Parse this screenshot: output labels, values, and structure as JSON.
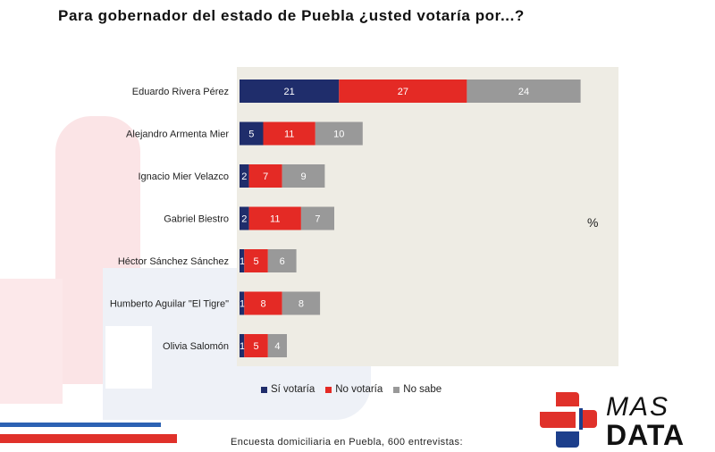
{
  "title": "Para gobernador del estado de Puebla ¿usted votaría por...?",
  "unit": "%",
  "footnote": "Encuesta domiciliaria en Puebla, 600 entrevistas:",
  "logo": {
    "line1": "MAS",
    "line2": "DATA",
    "colors": [
      "#e0312a",
      "#1d3f8c"
    ]
  },
  "chart_data": {
    "type": "bar",
    "orientation": "horizontal",
    "stacked": true,
    "categories": [
      "Eduardo Rivera Pérez",
      "Alejandro Armenta Mier",
      "Ignacio Mier Velazco",
      "Gabriel Biestro",
      "Héctor Sánchez Sánchez",
      "Humberto Aguilar \"El Tigre\"",
      "Olivia Salomón"
    ],
    "series": [
      {
        "name": "Sí votaría",
        "color": "#1f2d6b",
        "values": [
          21,
          5,
          2,
          2,
          1,
          1,
          1
        ]
      },
      {
        "name": "No votaría",
        "color": "#e42a25",
        "values": [
          27,
          11,
          7,
          11,
          5,
          8,
          5
        ]
      },
      {
        "name": "No sabe",
        "color": "#999999",
        "values": [
          24,
          10,
          9,
          7,
          6,
          8,
          4
        ]
      }
    ],
    "xlim": [
      0,
      80
    ],
    "legend_position": "bottom",
    "grid": false,
    "plot_background": "#eeece4"
  }
}
